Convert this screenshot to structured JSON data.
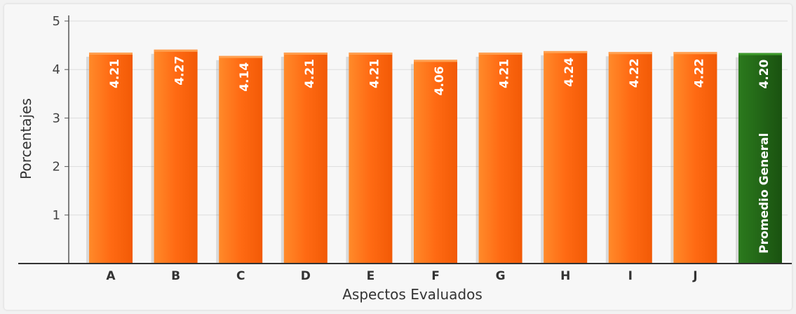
{
  "chart_data": {
    "type": "bar",
    "categories": [
      "A",
      "B",
      "C",
      "D",
      "E",
      "F",
      "G",
      "H",
      "I",
      "J"
    ],
    "values": [
      4.21,
      4.27,
      4.14,
      4.21,
      4.21,
      4.06,
      4.21,
      4.24,
      4.22,
      4.22
    ],
    "value_labels": [
      "4.21",
      "4.27",
      "4.14",
      "4.21",
      "4.21",
      "4.06",
      "4.21",
      "4.24",
      "4.22",
      "4.22"
    ],
    "summary_bar": {
      "label": "Promedio General",
      "value": 4.2,
      "value_label": "4.20",
      "color": "#1f5e14"
    },
    "bar_color": "#ff6a13",
    "xlabel": "Aspectos Evaluados",
    "ylabel": "Porcentajes",
    "ylim": [
      0,
      5
    ],
    "yticks": [
      "1",
      "2",
      "3",
      "4",
      "5"
    ],
    "grid": true,
    "legend": "none"
  }
}
